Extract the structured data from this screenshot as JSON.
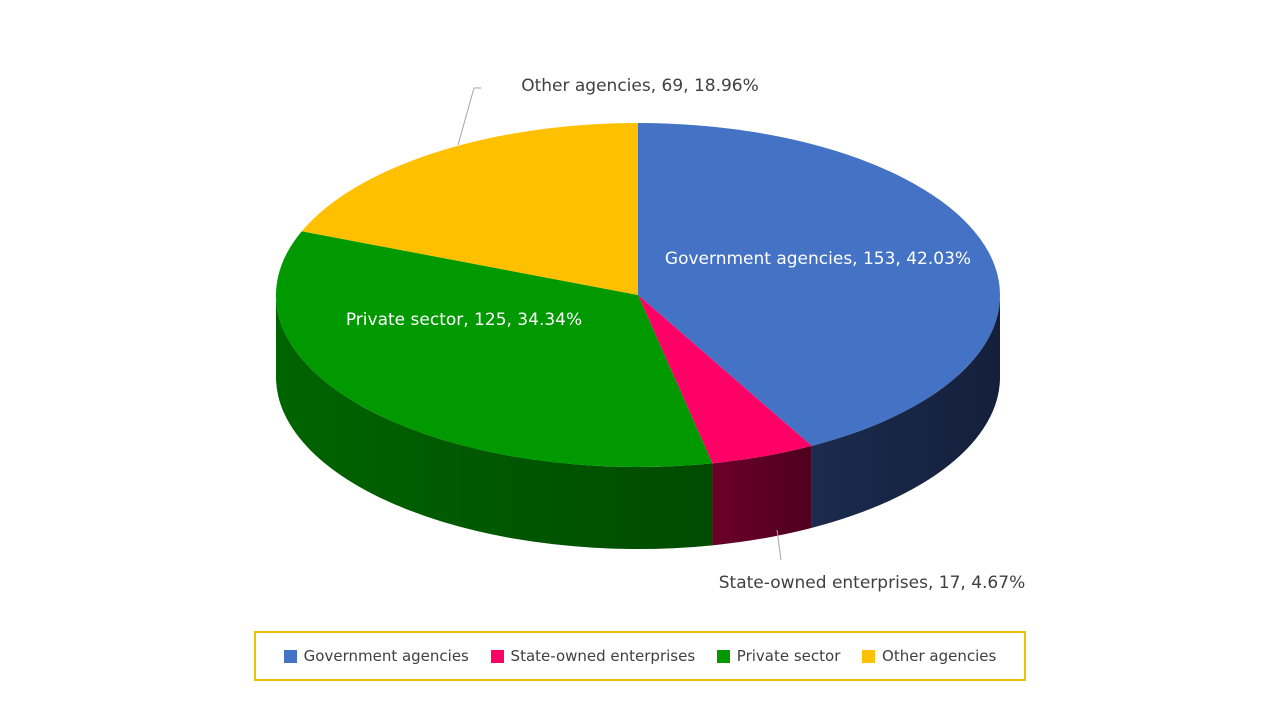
{
  "chart_data": {
    "type": "pie",
    "title": "",
    "slices": [
      {
        "label": "Government agencies",
        "value": 153,
        "percent": "42.03%",
        "data_label": "Government agencies, 153, 42.03%",
        "color": "#4472C4",
        "side_color": "#1B2A4E"
      },
      {
        "label": "State-owned enterprises",
        "value": 17,
        "percent": "4.67%",
        "data_label": "State-owned enterprises, 17, 4.67%",
        "color": "#FF0066",
        "side_color": "#6A0028"
      },
      {
        "label": "Private sector",
        "value": 125,
        "percent": "34.34%",
        "data_label": "Private sector, 125, 34.34%",
        "color": "#009900",
        "side_color": "#006400"
      },
      {
        "label": "Other agencies",
        "value": 69,
        "percent": "18.96%",
        "data_label": "Other agencies, 69, 18.96%",
        "color": "#FFC000",
        "side_color": "#B38600"
      }
    ],
    "legend_placement": "bottom",
    "legend_border_color": "#F5C000",
    "style": "3d-pie"
  }
}
